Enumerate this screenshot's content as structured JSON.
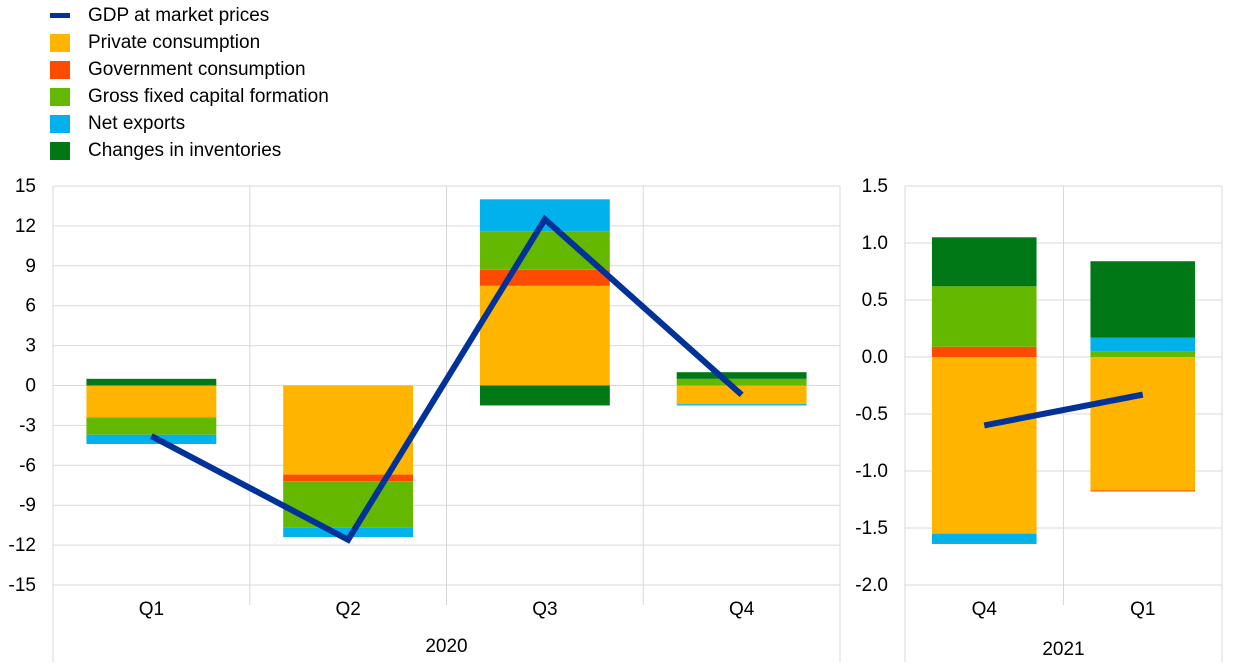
{
  "legend": [
    {
      "label": "GDP at market prices",
      "kind": "line",
      "color": "#003299"
    },
    {
      "label": "Private consumption",
      "kind": "bar",
      "color": "#ffb400"
    },
    {
      "label": "Government consumption",
      "kind": "bar",
      "color": "#ff4b00"
    },
    {
      "label": "Gross fixed capital formation",
      "kind": "bar",
      "color": "#65b800"
    },
    {
      "label": "Net exports",
      "kind": "bar",
      "color": "#00b1ea"
    },
    {
      "label": "Changes in inventories",
      "kind": "bar",
      "color": "#007816"
    }
  ],
  "chart_data": [
    {
      "type": "bar",
      "stacked": true,
      "group_label": "2020",
      "categories": [
        "Q1",
        "Q2",
        "Q3",
        "Q4"
      ],
      "ylim": [
        -15,
        15
      ],
      "yticks": [
        15,
        12,
        9,
        6,
        3,
        0,
        -3,
        -6,
        -9,
        -12,
        -15
      ],
      "series": [
        {
          "name": "Private consumption",
          "color": "#ffb400",
          "values": [
            -2.4,
            -6.7,
            7.5,
            -1.4
          ]
        },
        {
          "name": "Government consumption",
          "color": "#ff4b00",
          "values": [
            0.0,
            -0.5,
            1.2,
            0.0
          ]
        },
        {
          "name": "Gross fixed capital formation",
          "color": "#65b800",
          "values": [
            -1.3,
            -3.5,
            2.9,
            0.5
          ]
        },
        {
          "name": "Net exports",
          "color": "#00b1ea",
          "values": [
            -0.7,
            -0.7,
            2.4,
            -0.1
          ]
        },
        {
          "name": "Changes in inventories",
          "color": "#007816",
          "values": [
            0.5,
            0.0,
            -1.5,
            0.5
          ]
        }
      ],
      "line": {
        "name": "GDP at market prices",
        "color": "#003299",
        "values": [
          -3.8,
          -11.6,
          12.5,
          -0.7
        ]
      }
    },
    {
      "type": "bar",
      "stacked": true,
      "group_label": "2021",
      "categories": [
        "Q4",
        "Q1"
      ],
      "ylim": [
        -2.0,
        1.5
      ],
      "yticks": [
        "1.5",
        "1.0",
        "0.5",
        "0.0",
        "-0.5",
        "-1.0",
        "-1.5",
        "-2.0"
      ],
      "series": [
        {
          "name": "Private consumption",
          "color": "#ffb400",
          "values": [
            -1.55,
            -1.17
          ]
        },
        {
          "name": "Government consumption",
          "color": "#ff4b00",
          "values": [
            0.09,
            -0.01
          ]
        },
        {
          "name": "Gross fixed capital formation",
          "color": "#65b800",
          "values": [
            0.53,
            0.05
          ]
        },
        {
          "name": "Net exports",
          "color": "#00b1ea",
          "values": [
            -0.09,
            0.12
          ]
        },
        {
          "name": "Changes in inventories",
          "color": "#007816",
          "values": [
            0.43,
            0.67
          ]
        }
      ],
      "line": {
        "name": "GDP at market prices",
        "color": "#003299",
        "values": [
          -0.6,
          -0.33
        ]
      }
    }
  ]
}
